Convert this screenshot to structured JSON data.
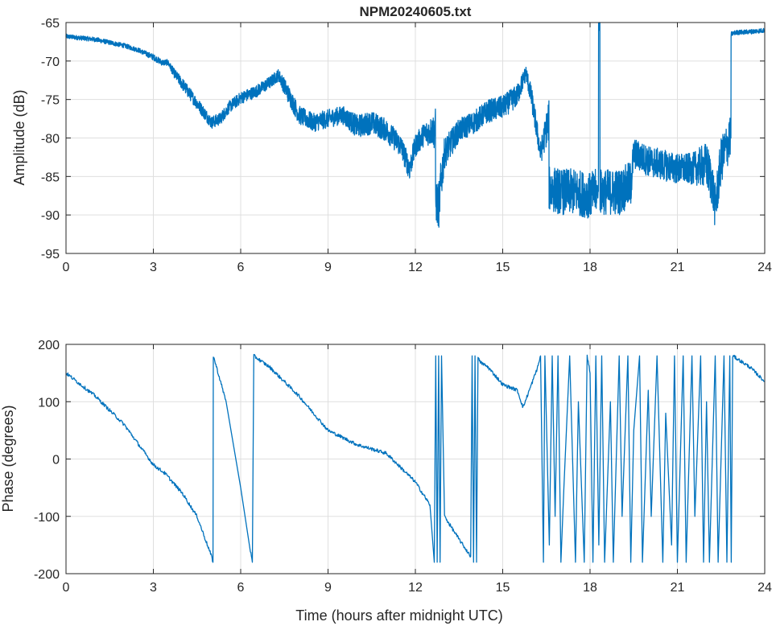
{
  "chart_data": [
    {
      "type": "line",
      "title": "NPM20240605.txt",
      "xlabel": "",
      "ylabel": "Amplitude (dB)",
      "xlim": [
        0,
        24
      ],
      "ylim": [
        -95,
        -65
      ],
      "xticks": [
        0,
        3,
        6,
        9,
        12,
        15,
        18,
        21,
        24
      ],
      "yticks": [
        -65,
        -70,
        -75,
        -80,
        -85,
        -90,
        -95
      ],
      "grid": true,
      "color": "#0072BD",
      "series": [
        {
          "name": "Amplitude",
          "x": [
            0,
            0.5,
            1,
            1.5,
            2,
            2.5,
            3,
            3.3,
            3.5,
            3.7,
            4,
            4.5,
            5,
            5.3,
            5.6,
            6,
            6.5,
            7,
            7.3,
            7.6,
            8,
            8.5,
            9,
            9.5,
            10,
            10.5,
            11,
            11.5,
            11.8,
            12,
            12.3,
            12.6,
            12.7,
            12.8,
            12.9,
            13,
            13.5,
            14,
            14.5,
            15,
            15.5,
            15.8,
            16,
            16.3,
            16.55,
            16.6,
            17,
            17.5,
            18,
            18.2,
            18.3,
            18.35,
            18.5,
            19,
            19.4,
            19.5,
            20,
            20.5,
            21,
            21.5,
            22,
            22.2,
            22.3,
            22.5,
            22.8,
            22.85,
            23,
            23.5,
            24
          ],
          "y": [
            -66.8,
            -67,
            -67.2,
            -67.6,
            -68,
            -68.6,
            -69.5,
            -70.2,
            -70.2,
            -71.5,
            -73,
            -75.5,
            -78,
            -77.5,
            -76,
            -74.8,
            -74,
            -72.8,
            -71.8,
            -74,
            -77,
            -78,
            -77.5,
            -77,
            -78.5,
            -78,
            -79,
            -81,
            -84,
            -81,
            -79.5,
            -79,
            -88,
            -89,
            -85,
            -82,
            -79,
            -78,
            -76.5,
            -76,
            -74.5,
            -71.5,
            -75,
            -82,
            -78,
            -86.5,
            -87,
            -87,
            -87.5,
            -87,
            -65,
            -87,
            -87,
            -87,
            -86,
            -82,
            -83,
            -83.5,
            -84,
            -84,
            -83.5,
            -86,
            -89,
            -83,
            -80,
            -66.5,
            -66.3,
            -66.2,
            -66
          ],
          "noise_db": [
            0.3,
            0.3,
            0.3,
            0.3,
            0.3,
            0.3,
            0.4,
            0.4,
            0.4,
            0.6,
            0.8,
            0.8,
            0.8,
            0.8,
            0.8,
            0.8,
            0.8,
            0.8,
            0.8,
            1.2,
            1.2,
            1.2,
            1.2,
            1.2,
            1.5,
            1.5,
            1.5,
            1.5,
            1.5,
            1.5,
            1.5,
            2,
            3,
            3,
            3,
            2,
            1.5,
            1.5,
            1.5,
            1.5,
            1.5,
            1,
            1.5,
            1.5,
            2.5,
            3,
            3,
            3,
            3,
            3,
            0,
            3,
            3,
            3,
            3,
            2,
            2,
            2,
            2,
            2,
            3,
            3,
            3,
            3,
            3,
            0.3,
            0.3,
            0.3,
            0.3
          ]
        }
      ]
    },
    {
      "type": "line",
      "title": "",
      "xlabel": "Time (hours after midnight UTC)",
      "ylabel": "Phase (degrees)",
      "xlim": [
        0,
        24
      ],
      "ylim": [
        -200,
        200
      ],
      "xticks": [
        0,
        3,
        6,
        9,
        12,
        15,
        18,
        21,
        24
      ],
      "yticks": [
        200,
        100,
        0,
        -100,
        -200
      ],
      "grid": true,
      "color": "#0072BD",
      "series": [
        {
          "name": "Phase",
          "x": [
            0,
            1,
            2,
            3,
            3.4,
            4,
            4.5,
            5,
            5.05,
            5.06,
            5.5,
            6,
            6.3,
            6.4,
            6.45,
            7,
            8,
            9,
            10,
            11,
            12,
            12.5,
            12.65,
            12.7,
            12.75,
            12.8,
            12.85,
            12.9,
            13,
            13.5,
            13.9,
            13.95,
            14,
            14.05,
            14.1,
            14.15,
            14.2,
            14.5,
            15,
            15.5,
            15.7,
            16.2,
            16.3,
            16.4,
            16.45,
            16.6,
            16.7,
            16.8,
            16.9,
            17,
            17.1,
            17.3,
            17.5,
            17.6,
            17.8,
            17.9,
            18,
            18.1,
            18.2,
            18.3,
            18.4,
            18.5,
            18.7,
            18.8,
            19,
            19.1,
            19.3,
            19.4,
            19.5,
            19.7,
            19.8,
            20,
            20.1,
            20.3,
            20.5,
            20.6,
            20.8,
            20.9,
            21,
            21.2,
            21.3,
            21.5,
            21.6,
            21.8,
            21.9,
            22,
            22.1,
            22.3,
            22.4,
            22.6,
            22.7,
            22.8,
            22.85,
            22.9,
            23.5,
            24
          ],
          "y": [
            150,
            110,
            60,
            -10,
            -25,
            -60,
            -100,
            -170,
            -180,
            180,
            100,
            -50,
            -150,
            -180,
            180,
            160,
            110,
            50,
            25,
            10,
            -40,
            -80,
            -180,
            180,
            -180,
            180,
            -180,
            180,
            -100,
            -140,
            -170,
            180,
            -180,
            180,
            -180,
            180,
            170,
            160,
            130,
            120,
            90,
            160,
            180,
            -180,
            180,
            -150,
            180,
            -100,
            180,
            -180,
            -50,
            180,
            -180,
            100,
            -180,
            180,
            150,
            -180,
            180,
            -150,
            180,
            -180,
            100,
            -180,
            180,
            -100,
            180,
            -180,
            50,
            180,
            -180,
            120,
            -100,
            180,
            -180,
            80,
            -150,
            180,
            -180,
            180,
            -180,
            180,
            -100,
            180,
            -180,
            100,
            -180,
            180,
            -180,
            180,
            -180,
            180,
            -180,
            180,
            160,
            135
          ]
        }
      ]
    }
  ]
}
